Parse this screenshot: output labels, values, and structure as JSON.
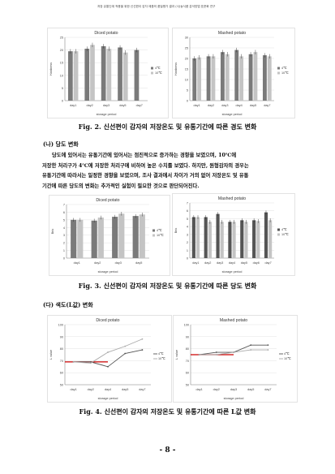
{
  "header": {
    "text": "저장 유통단계 적용을 위한 신선편이 감자 제품의 품질평가 결과 (사)농식품 분석방법 표준화 연구"
  },
  "figures": [
    {
      "caption": "Fig. 2. 신선편이 감자의 저장온도 및 유통기간에 따른 경도 변화"
    },
    {
      "caption": "Fig. 3. 신선편이 감자의 저장온도 및 유통기간에 따른 당도 변화"
    },
    {
      "caption": "Fig. 4. 신선편이 감자의 저장온도 및 유통기간에 따른 L값 변화"
    }
  ],
  "section_b": {
    "title": "(나) 당도 변화"
  },
  "section_c": {
    "title": "(다) 색도(L값) 변화"
  },
  "paragraph": {
    "lines": [
      "당도에 있어서는 유통기간에 있어서는 점진적으로 증가하는 경향을 보였으며, 10℃에",
      "저장한 처리구가 4℃에 저장한 처리구에 비하여 높은 수치를 보였다. 하지만, 원형감자의 경우는",
      "유통기간에 따라서는 일정한 경향을 보였으며, 조사 결과에서 차이가 거의 없어 저장온도 및 유통",
      "기간에 따른 당도의 변화는 추가적인 실험이 필요한 것으로 판단되어진다."
    ]
  },
  "page_number": "- 8 -",
  "chart_data": [
    {
      "type": "bar",
      "title": "Diced potato",
      "xlabel": "storage period",
      "ylabel": "Hardness",
      "categories": [
        "day1",
        "day2",
        "day3",
        "day5",
        "day7"
      ],
      "ylim": [
        0,
        25
      ],
      "yticks": [
        0,
        5,
        10,
        15,
        20,
        25
      ],
      "series": [
        {
          "name": "4℃",
          "values": [
            19.5,
            20.5,
            21.5,
            21.0,
            20.0
          ]
        },
        {
          "name": "10℃",
          "values": [
            19.5,
            22.0,
            20.5,
            19.0,
            null
          ]
        }
      ],
      "colors": [
        "#7a7a7a",
        "#c4c4c4"
      ],
      "legend": "right"
    },
    {
      "type": "bar",
      "title": "Mashed potato",
      "xlabel": "storage period",
      "ylabel": "Hardness",
      "categories": [
        "day1",
        "day2",
        "day3",
        "day4",
        "day5",
        "day7"
      ],
      "ylim": [
        0,
        30
      ],
      "yticks": [
        0,
        5,
        10,
        15,
        20,
        25,
        30
      ],
      "series": [
        {
          "name": "4℃",
          "values": [
            20.0,
            21.0,
            23.0,
            24.0,
            22.0,
            21.5
          ]
        },
        {
          "name": "10℃",
          "values": [
            20.5,
            21.0,
            22.0,
            21.0,
            23.0,
            21.0
          ]
        }
      ],
      "colors": [
        "#7a7a7a",
        "#c4c4c4"
      ],
      "legend": "right"
    },
    {
      "type": "bar",
      "title": "Diced potato",
      "xlabel": "storage period",
      "ylabel": "Brix",
      "categories": [
        "day1",
        "day2",
        "day3",
        "day5"
      ],
      "ylim": [
        0,
        7
      ],
      "yticks": [
        0,
        1,
        2,
        3,
        4,
        5,
        6,
        7
      ],
      "series": [
        {
          "name": "4℃",
          "values": [
            5.0,
            4.9,
            5.4,
            5.5
          ]
        },
        {
          "name": "10℃",
          "values": [
            5.0,
            5.3,
            5.8,
            5.7
          ]
        }
      ],
      "colors": [
        "#7a7a7a",
        "#c4c4c4"
      ],
      "legend": "right"
    },
    {
      "type": "bar",
      "title": "Mashed potato",
      "xlabel": "storage period",
      "ylabel": "Brix",
      "categories": [
        "day1",
        "day2",
        "day3",
        "day4",
        "day5",
        "day6",
        "day7"
      ],
      "ylim": [
        0,
        7
      ],
      "yticks": [
        0,
        1,
        2,
        3,
        4,
        5,
        6,
        7
      ],
      "series": [
        {
          "name": "4℃",
          "values": [
            5.2,
            5.2,
            5.6,
            4.6,
            4.8,
            4.8,
            5.8
          ]
        },
        {
          "name": "10℃",
          "values": [
            5.2,
            4.6,
            4.6,
            4.6,
            4.6,
            4.7,
            4.8
          ]
        }
      ],
      "colors": [
        "#555555",
        "#c4c4c4"
      ],
      "legend": "right"
    },
    {
      "type": "line",
      "title": "Diced potato",
      "xlabel": "storage period",
      "ylabel": "L value",
      "categories": [
        "day1",
        "day2",
        "day4",
        "day5",
        "day7"
      ],
      "ylim": [
        50,
        100
      ],
      "yticks": [
        50,
        60,
        70,
        80,
        90,
        100
      ],
      "series": [
        {
          "name": "4℃",
          "values": [
            69,
            69,
            65,
            76,
            79
          ]
        },
        {
          "name": "10℃",
          "values": [
            69,
            68,
            77,
            82,
            88
          ]
        }
      ],
      "reference_line": {
        "value": 69,
        "color": "#cc0000"
      },
      "colors": [
        "#555555",
        "#aaaaaa"
      ],
      "legend": "right"
    },
    {
      "type": "line",
      "title": "Mashed potato",
      "xlabel": "storage period",
      "ylabel": "L value",
      "categories": [
        "day1",
        "day2",
        "day3",
        "day5",
        "day7"
      ],
      "ylim": [
        50,
        100
      ],
      "yticks": [
        50,
        60,
        70,
        80,
        90,
        100
      ],
      "series": [
        {
          "name": "4℃",
          "values": [
            75,
            77,
            77,
            83,
            83
          ]
        },
        {
          "name": "10℃",
          "values": [
            75,
            75,
            77,
            79,
            79
          ]
        }
      ],
      "reference_line": {
        "value": 75,
        "color": "#cc0000"
      },
      "colors": [
        "#555555",
        "#aaaaaa"
      ],
      "legend": "right"
    }
  ]
}
